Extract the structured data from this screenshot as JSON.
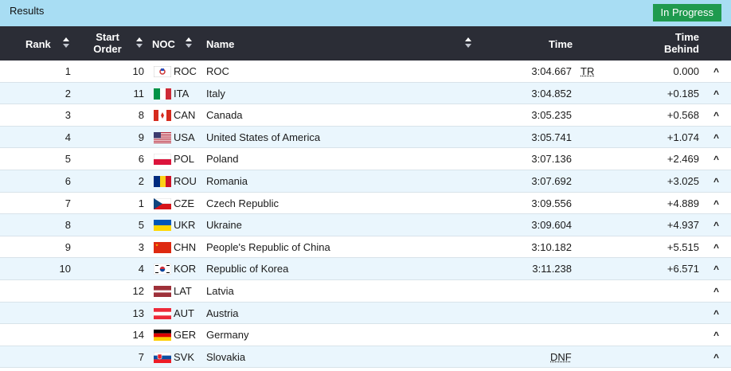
{
  "header": {
    "title": "Results",
    "status": "In Progress"
  },
  "columns": {
    "rank": "Rank",
    "start_l1": "Start",
    "start_l2": "Order",
    "noc": "NOC",
    "name": "Name",
    "time": "Time",
    "behind_l1": "Time",
    "behind_l2": "Behind"
  },
  "colors": {
    "topbar": "#a8ddf3",
    "header": "#2b2d36",
    "badge": "#1f9a4e",
    "alt_row": "#eaf6fd"
  },
  "rows": [
    {
      "rank": "1",
      "start": "10",
      "noc": "ROC",
      "name": "ROC",
      "time": "3:04.667",
      "note": "TR",
      "behind": "0.000",
      "flag": "roc-flag-icon"
    },
    {
      "rank": "2",
      "start": "11",
      "noc": "ITA",
      "name": "Italy",
      "time": "3:04.852",
      "note": "",
      "behind": "+0.185",
      "flag": "italy-flag-icon"
    },
    {
      "rank": "3",
      "start": "8",
      "noc": "CAN",
      "name": "Canada",
      "time": "3:05.235",
      "note": "",
      "behind": "+0.568",
      "flag": "canada-flag-icon"
    },
    {
      "rank": "4",
      "start": "9",
      "noc": "USA",
      "name": "United States of America",
      "time": "3:05.741",
      "note": "",
      "behind": "+1.074",
      "flag": "usa-flag-icon"
    },
    {
      "rank": "5",
      "start": "6",
      "noc": "POL",
      "name": "Poland",
      "time": "3:07.136",
      "note": "",
      "behind": "+2.469",
      "flag": "poland-flag-icon"
    },
    {
      "rank": "6",
      "start": "2",
      "noc": "ROU",
      "name": "Romania",
      "time": "3:07.692",
      "note": "",
      "behind": "+3.025",
      "flag": "romania-flag-icon"
    },
    {
      "rank": "7",
      "start": "1",
      "noc": "CZE",
      "name": "Czech Republic",
      "time": "3:09.556",
      "note": "",
      "behind": "+4.889",
      "flag": "czech-flag-icon"
    },
    {
      "rank": "8",
      "start": "5",
      "noc": "UKR",
      "name": "Ukraine",
      "time": "3:09.604",
      "note": "",
      "behind": "+4.937",
      "flag": "ukraine-flag-icon"
    },
    {
      "rank": "9",
      "start": "3",
      "noc": "CHN",
      "name": "People's Republic of China",
      "time": "3:10.182",
      "note": "",
      "behind": "+5.515",
      "flag": "china-flag-icon"
    },
    {
      "rank": "10",
      "start": "4",
      "noc": "KOR",
      "name": "Republic of Korea",
      "time": "3:11.238",
      "note": "",
      "behind": "+6.571",
      "flag": "korea-flag-icon"
    },
    {
      "rank": "",
      "start": "12",
      "noc": "LAT",
      "name": "Latvia",
      "time": "",
      "note": "",
      "behind": "",
      "flag": "latvia-flag-icon"
    },
    {
      "rank": "",
      "start": "13",
      "noc": "AUT",
      "name": "Austria",
      "time": "",
      "note": "",
      "behind": "",
      "flag": "austria-flag-icon"
    },
    {
      "rank": "",
      "start": "14",
      "noc": "GER",
      "name": "Germany",
      "time": "",
      "note": "",
      "behind": "",
      "flag": "germany-flag-icon"
    },
    {
      "rank": "",
      "start": "7",
      "noc": "SVK",
      "name": "Slovakia",
      "time": "",
      "note": "DNF",
      "behind": "",
      "flag": "slovakia-flag-icon"
    }
  ]
}
